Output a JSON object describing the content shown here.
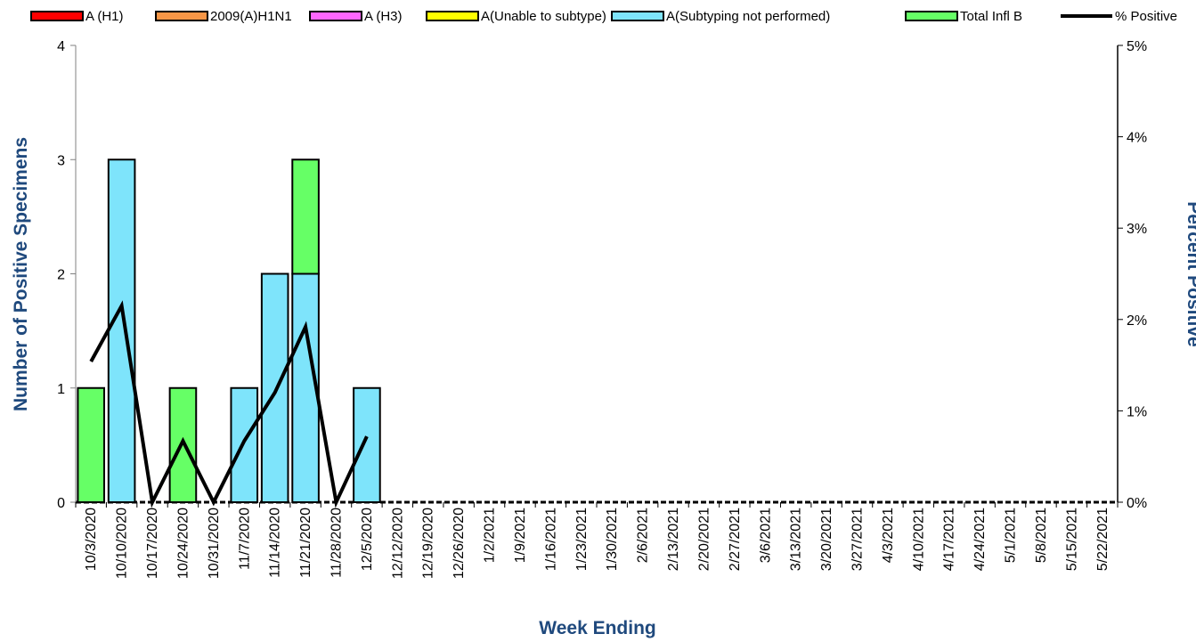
{
  "chart_data": {
    "type": "bar",
    "stacked": true,
    "title": "",
    "xlabel": "Week Ending",
    "ylabel": "Number of  Positive Specimens",
    "y2label": "Percent Positive",
    "ylim": [
      0,
      4
    ],
    "y2lim": [
      0,
      5
    ],
    "yticks": [
      "0",
      "1",
      "2",
      "3",
      "4"
    ],
    "y2ticks": [
      "0%",
      "1%",
      "2%",
      "3%",
      "4%",
      "5%"
    ],
    "legend_position": "top",
    "grid": false,
    "categories": [
      "10/3/2020",
      "10/10/2020",
      "10/17/2020",
      "10/24/2020",
      "10/31/2020",
      "11/7/2020",
      "11/14/2020",
      "11/21/2020",
      "11/28/2020",
      "12/5/2020",
      "12/12/2020",
      "12/19/2020",
      "12/26/2020",
      "1/2/2021",
      "1/9/2021",
      "1/16/2021",
      "1/23/2021",
      "1/30/2021",
      "2/6/2021",
      "2/13/2021",
      "2/20/2021",
      "2/27/2021",
      "3/6/2021",
      "3/13/2021",
      "3/20/2021",
      "3/27/2021",
      "4/3/2021",
      "4/10/2021",
      "4/17/2021",
      "4/24/2021",
      "5/1/2021",
      "5/8/2021",
      "5/15/2021",
      "5/22/2021"
    ],
    "series": [
      {
        "name": "A (H1)",
        "kind": "bar",
        "color": "#ff0000",
        "values": [
          0,
          0,
          0,
          0,
          0,
          0,
          0,
          0,
          0,
          0,
          0,
          0,
          0,
          0,
          0,
          0,
          0,
          0,
          0,
          0,
          0,
          0,
          0,
          0,
          0,
          0,
          0,
          0,
          0,
          0,
          0,
          0,
          0,
          0
        ]
      },
      {
        "name": "2009(A)H1N1",
        "kind": "bar",
        "color": "#f79646",
        "values": [
          0,
          0,
          0,
          0,
          0,
          0,
          0,
          0,
          0,
          0,
          0,
          0,
          0,
          0,
          0,
          0,
          0,
          0,
          0,
          0,
          0,
          0,
          0,
          0,
          0,
          0,
          0,
          0,
          0,
          0,
          0,
          0,
          0,
          0
        ]
      },
      {
        "name": "A (H3)",
        "kind": "bar",
        "color": "#ff66ff",
        "values": [
          0,
          0,
          0,
          0,
          0,
          0,
          0,
          0,
          0,
          0,
          0,
          0,
          0,
          0,
          0,
          0,
          0,
          0,
          0,
          0,
          0,
          0,
          0,
          0,
          0,
          0,
          0,
          0,
          0,
          0,
          0,
          0,
          0,
          0
        ]
      },
      {
        "name": "A(Unable to subtype)",
        "kind": "bar",
        "color": "#ffff00",
        "values": [
          0,
          0,
          0,
          0,
          0,
          0,
          0,
          0,
          0,
          0,
          0,
          0,
          0,
          0,
          0,
          0,
          0,
          0,
          0,
          0,
          0,
          0,
          0,
          0,
          0,
          0,
          0,
          0,
          0,
          0,
          0,
          0,
          0,
          0
        ]
      },
      {
        "name": "A(Subtyping not performed)",
        "kind": "bar",
        "color": "#7ee4fb",
        "values": [
          0,
          3,
          0,
          0,
          0,
          1,
          2,
          2,
          0,
          1,
          0,
          0,
          0,
          0,
          0,
          0,
          0,
          0,
          0,
          0,
          0,
          0,
          0,
          0,
          0,
          0,
          0,
          0,
          0,
          0,
          0,
          0,
          0,
          0
        ]
      },
      {
        "name": "Total Infl B",
        "kind": "bar",
        "color": "#66ff66",
        "values": [
          1,
          0,
          0,
          1,
          0,
          0,
          0,
          1,
          0,
          0,
          0,
          0,
          0,
          0,
          0,
          0,
          0,
          0,
          0,
          0,
          0,
          0,
          0,
          0,
          0,
          0,
          0,
          0,
          0,
          0,
          0,
          0,
          0,
          0
        ]
      },
      {
        "name": "% Positive",
        "kind": "line",
        "axis": "right",
        "color": "#000000",
        "values": [
          1.54,
          2.15,
          0,
          0.67,
          0,
          0.67,
          1.2,
          1.92,
          0,
          0.72,
          null,
          null,
          null,
          null,
          null,
          null,
          null,
          null,
          null,
          null,
          null,
          null,
          null,
          null,
          null,
          null,
          null,
          null,
          null,
          null,
          null,
          null,
          null,
          null
        ]
      }
    ]
  }
}
